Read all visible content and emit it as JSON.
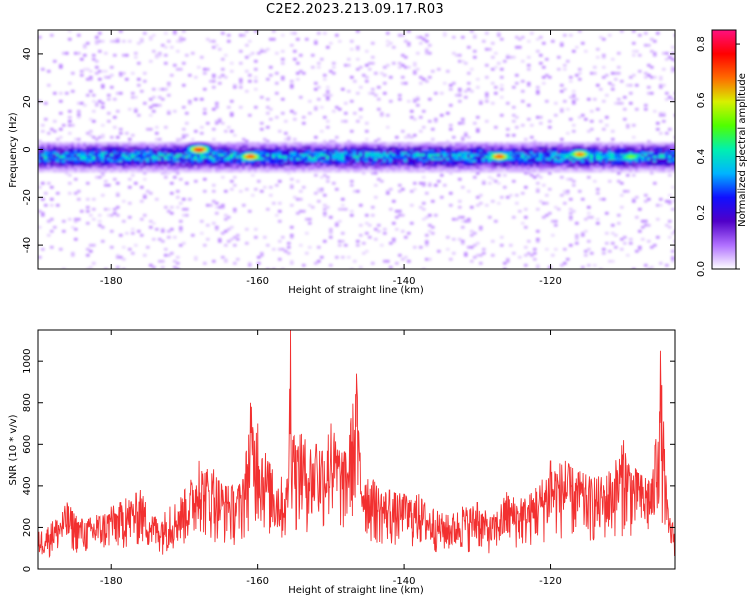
{
  "page": {
    "title": "C2E2.2023.213.09.17.R03"
  },
  "colors": {
    "line": "#f23030",
    "axis": "#000000",
    "background": "#ffffff"
  },
  "chart_data": [
    {
      "type": "heatmap",
      "xlabel": "Height of straight line (km)",
      "ylabel": "Frequency (Hz)",
      "xlim": [
        -190,
        -103
      ],
      "ylim": [
        -50,
        50
      ],
      "x_ticks": [
        -180,
        -160,
        -140,
        -120
      ],
      "y_ticks": [
        -40,
        -20,
        0,
        20,
        40
      ],
      "band": {
        "center_hz": -3,
        "half_width_hz": 4,
        "typical_amplitude": 0.3,
        "peak_amplitude": 0.8
      },
      "peaks": [
        {
          "x": -168,
          "y": 0,
          "amplitude": 0.8
        },
        {
          "x": -161,
          "y": -3,
          "amplitude": 0.75
        },
        {
          "x": -127,
          "y": -3,
          "amplitude": 0.75
        },
        {
          "x": -116,
          "y": -2,
          "amplitude": 0.7
        },
        {
          "x": -109,
          "y": -3,
          "amplitude": 0.55
        }
      ],
      "colorbar": {
        "label": "Normalized spectral amplitude",
        "range": [
          0.0,
          0.85
        ],
        "ticks": [
          "0.0",
          "0.2",
          "0.4",
          "0.6",
          "0.8"
        ],
        "colormap": [
          "#ffffff",
          "#b070ff",
          "#5000c8",
          "#1010ff",
          "#00b4ff",
          "#00f0b0",
          "#50ff00",
          "#d8f000",
          "#ff6a00",
          "#ff0000",
          "#ff1080"
        ]
      }
    },
    {
      "type": "line",
      "xlabel": "Height of straight line (km)",
      "ylabel": "SNR (10 * v/v)",
      "xlim": [
        -190,
        -103
      ],
      "ylim": [
        0,
        1150
      ],
      "x_ticks": [
        -180,
        -160,
        -140,
        -120
      ],
      "y_ticks": [
        0,
        200,
        400,
        600,
        800,
        1000
      ],
      "series": [
        {
          "x": [
            -190,
            -188,
            -186,
            -184,
            -182,
            -180,
            -178,
            -176,
            -174,
            -172,
            -170,
            -168,
            -166,
            -164,
            -162,
            -161,
            -160,
            -158,
            -156,
            -155.5,
            -155,
            -154,
            -152,
            -150,
            -148,
            -146.5,
            -146,
            -144,
            -142,
            -140,
            -138,
            -136,
            -134,
            -132,
            -130,
            -128,
            -126,
            -124,
            -122,
            -120,
            -118,
            -116,
            -114,
            -112,
            -110,
            -108,
            -106,
            -105,
            -104,
            -103
          ],
          "values": [
            180,
            230,
            320,
            240,
            260,
            300,
            340,
            380,
            250,
            300,
            380,
            520,
            480,
            400,
            430,
            800,
            700,
            480,
            430,
            1150,
            640,
            650,
            600,
            700,
            560,
            940,
            560,
            420,
            380,
            360,
            360,
            290,
            260,
            300,
            320,
            250,
            370,
            340,
            390,
            520,
            520,
            470,
            440,
            470,
            620,
            460,
            480,
            1050,
            300,
            200
          ]
        }
      ]
    }
  ]
}
